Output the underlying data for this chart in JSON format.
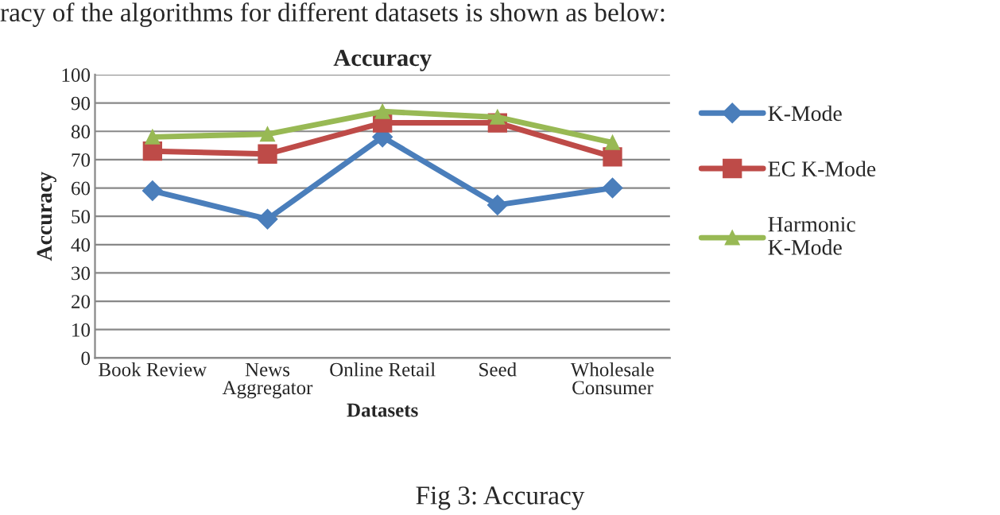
{
  "chart_data": {
    "type": "line",
    "title": "Accuracy",
    "xlabel": "Datasets",
    "ylabel": "Accuracy",
    "categories": [
      "Book Review",
      "News\nAggregator",
      "Online Retail",
      "Seed",
      "Wholesale\nConsumer"
    ],
    "series": [
      {
        "name": "K-Mode",
        "color": "#4a7ebb",
        "marker": "diamond",
        "values": [
          59,
          49,
          78,
          54,
          60
        ]
      },
      {
        "name": "EC K-Mode",
        "color": "#be4b48",
        "marker": "square",
        "values": [
          73,
          72,
          83,
          83,
          71
        ]
      },
      {
        "name": "Harmonic\nK-Mode",
        "color": "#98b954",
        "marker": "triangle",
        "values": [
          78,
          79,
          87,
          85,
          76
        ]
      }
    ],
    "ylim": [
      0,
      100
    ],
    "yticks": [
      0,
      10,
      20,
      30,
      40,
      50,
      60,
      70,
      80,
      90,
      100
    ],
    "grid": "y",
    "legend": "right",
    "annotations": [
      "racy of the algorithms for different datasets is shown as below:",
      "Fig 3: Accuracy"
    ]
  }
}
